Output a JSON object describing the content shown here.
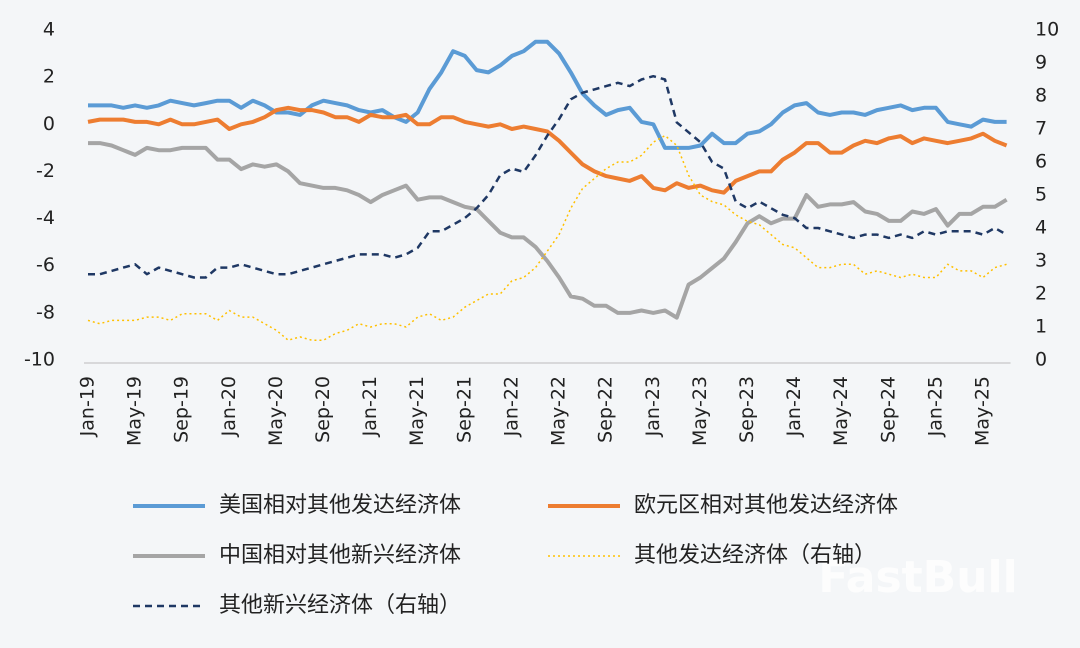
{
  "chart_data": {
    "type": "line",
    "categories": [
      "Jan-19",
      null,
      null,
      null,
      "May-19",
      null,
      null,
      null,
      "Sep-19",
      null,
      null,
      null,
      "Jan-20",
      null,
      null,
      null,
      "May-20",
      null,
      null,
      null,
      "Sep-20",
      null,
      null,
      null,
      "Jan-21",
      null,
      null,
      null,
      "May-21",
      null,
      null,
      null,
      "Sep-21",
      null,
      null,
      null,
      "Jan-22",
      null,
      null,
      null,
      "May-22",
      null,
      null,
      null,
      "Sep-22",
      null,
      null,
      null,
      "Jan-23",
      null,
      null,
      null,
      "May-23",
      null,
      null,
      null,
      "Sep-23",
      null,
      null,
      null,
      "Jan-24",
      null,
      null,
      null,
      "May-24",
      null,
      null,
      null,
      "Sep-24",
      null,
      null,
      null,
      "Jan-25",
      null,
      null,
      null,
      "May-25",
      null,
      null
    ],
    "ylim": [
      -10,
      4
    ],
    "yticks": [
      -10,
      -8,
      -6,
      -4,
      -2,
      0,
      2,
      4
    ],
    "y2lim": [
      0,
      10
    ],
    "y2ticks": [
      0,
      1,
      2,
      3,
      4,
      5,
      6,
      7,
      8,
      9,
      10
    ],
    "series": [
      {
        "name": "美国相对其他发达经济体",
        "color": "#5b9bd5",
        "line_style": "solid",
        "values": [
          0.8,
          0.8,
          0.8,
          0.7,
          0.8,
          0.7,
          0.8,
          1.0,
          0.9,
          0.8,
          0.9,
          1.0,
          1.0,
          0.7,
          1.0,
          0.8,
          0.5,
          0.5,
          0.4,
          0.8,
          1.0,
          0.9,
          0.8,
          0.6,
          0.5,
          0.6,
          0.3,
          0.1,
          0.5,
          1.5,
          2.2,
          3.1,
          2.9,
          2.3,
          2.2,
          2.5,
          2.9,
          3.1,
          3.5,
          3.5,
          3.0,
          2.2,
          1.3,
          0.8,
          0.4,
          0.6,
          0.7,
          0.1,
          0.0,
          -1.0,
          -1.0,
          -1.0,
          -0.9,
          -0.4,
          -0.8,
          -0.8,
          -0.4,
          -0.3,
          0.0,
          0.5,
          0.8,
          0.9,
          0.5,
          0.4,
          0.5,
          0.5,
          0.4,
          0.6,
          0.7,
          0.8,
          0.6,
          0.7,
          0.7,
          0.1,
          0.0,
          -0.1,
          0.2,
          0.1,
          0.1
        ]
      },
      {
        "name": "欧元区相对其他发达经济体",
        "color": "#ed7d31",
        "line_style": "solid",
        "values": [
          0.1,
          0.2,
          0.2,
          0.2,
          0.1,
          0.1,
          0.0,
          0.2,
          0.0,
          0.0,
          0.1,
          0.2,
          -0.2,
          0.0,
          0.1,
          0.3,
          0.6,
          0.7,
          0.6,
          0.6,
          0.5,
          0.3,
          0.3,
          0.1,
          0.4,
          0.3,
          0.3,
          0.4,
          0.0,
          0.0,
          0.3,
          0.3,
          0.1,
          0.0,
          -0.1,
          0.0,
          -0.2,
          -0.1,
          -0.2,
          -0.3,
          -0.7,
          -1.2,
          -1.7,
          -2.0,
          -2.2,
          -2.3,
          -2.4,
          -2.2,
          -2.7,
          -2.8,
          -2.5,
          -2.7,
          -2.6,
          -2.8,
          -2.9,
          -2.4,
          -2.2,
          -2.0,
          -2.0,
          -1.5,
          -1.2,
          -0.8,
          -0.8,
          -1.2,
          -1.2,
          -0.9,
          -0.7,
          -0.8,
          -0.6,
          -0.5,
          -0.8,
          -0.6,
          -0.7,
          -0.8,
          -0.7,
          -0.6,
          -0.4,
          -0.7,
          -0.9
        ]
      },
      {
        "name": "中国相对其他新兴经济体",
        "color": "#a5a5a5",
        "line_style": "solid",
        "values": [
          -0.8,
          -0.8,
          -0.9,
          -1.1,
          -1.3,
          -1.0,
          -1.1,
          -1.1,
          -1.0,
          -1.0,
          -1.0,
          -1.5,
          -1.5,
          -1.9,
          -1.7,
          -1.8,
          -1.7,
          -2.0,
          -2.5,
          -2.6,
          -2.7,
          -2.7,
          -2.8,
          -3.0,
          -3.3,
          -3.0,
          -2.8,
          -2.6,
          -3.2,
          -3.1,
          -3.1,
          -3.3,
          -3.5,
          -3.6,
          -4.1,
          -4.6,
          -4.8,
          -4.8,
          -5.2,
          -5.8,
          -6.5,
          -7.3,
          -7.4,
          -7.7,
          -7.7,
          -8.0,
          -8.0,
          -7.9,
          -8.0,
          -7.9,
          -8.2,
          -6.8,
          -6.5,
          -6.1,
          -5.7,
          -5.0,
          -4.2,
          -3.9,
          -4.2,
          -4.0,
          -4.0,
          -3.0,
          -3.5,
          -3.4,
          -3.4,
          -3.3,
          -3.7,
          -3.8,
          -4.1,
          -4.1,
          -3.7,
          -3.8,
          -3.6,
          -4.3,
          -3.8,
          -3.8,
          -3.5,
          -3.5,
          -3.2
        ]
      },
      {
        "name": "其他发达经济体（右轴）",
        "color": "#ffc000",
        "line_style": "dotted",
        "axis": "y2",
        "values": [
          1.2,
          1.1,
          1.2,
          1.2,
          1.2,
          1.3,
          1.3,
          1.2,
          1.4,
          1.4,
          1.4,
          1.2,
          1.5,
          1.3,
          1.3,
          1.1,
          0.9,
          0.6,
          0.7,
          0.6,
          0.6,
          0.8,
          0.9,
          1.1,
          1.0,
          1.1,
          1.1,
          1.0,
          1.3,
          1.4,
          1.2,
          1.3,
          1.6,
          1.8,
          2.0,
          2.0,
          2.4,
          2.5,
          2.8,
          3.3,
          3.8,
          4.6,
          5.2,
          5.5,
          5.8,
          6.0,
          6.0,
          6.2,
          6.6,
          6.8,
          6.5,
          5.6,
          5.0,
          4.8,
          4.7,
          4.4,
          4.2,
          4.1,
          3.8,
          3.5,
          3.4,
          3.1,
          2.8,
          2.8,
          2.9,
          2.9,
          2.6,
          2.7,
          2.6,
          2.5,
          2.6,
          2.5,
          2.5,
          2.9,
          2.7,
          2.7,
          2.5,
          2.8,
          2.9
        ]
      },
      {
        "name": "其他新兴经济体（右轴）",
        "color": "#1f3864",
        "line_style": "dashed",
        "axis": "y2",
        "values": [
          2.6,
          2.6,
          2.7,
          2.8,
          2.9,
          2.6,
          2.8,
          2.7,
          2.6,
          2.5,
          2.5,
          2.8,
          2.8,
          2.9,
          2.8,
          2.7,
          2.6,
          2.6,
          2.7,
          2.8,
          2.9,
          3.0,
          3.1,
          3.2,
          3.2,
          3.2,
          3.1,
          3.2,
          3.4,
          3.9,
          3.9,
          4.1,
          4.3,
          4.6,
          5.0,
          5.6,
          5.8,
          5.7,
          6.2,
          6.8,
          7.3,
          7.9,
          8.1,
          8.2,
          8.3,
          8.4,
          8.3,
          8.5,
          8.6,
          8.5,
          7.2,
          6.9,
          6.6,
          6.0,
          5.8,
          4.8,
          4.6,
          4.8,
          4.6,
          4.4,
          4.3,
          4.0,
          4.0,
          3.9,
          3.8,
          3.7,
          3.8,
          3.8,
          3.7,
          3.8,
          3.7,
          3.9,
          3.8,
          3.9,
          3.9,
          3.9,
          3.8,
          4.0,
          3.8
        ]
      }
    ],
    "legend": "bottom",
    "grid": false
  },
  "watermark": "FastBull"
}
